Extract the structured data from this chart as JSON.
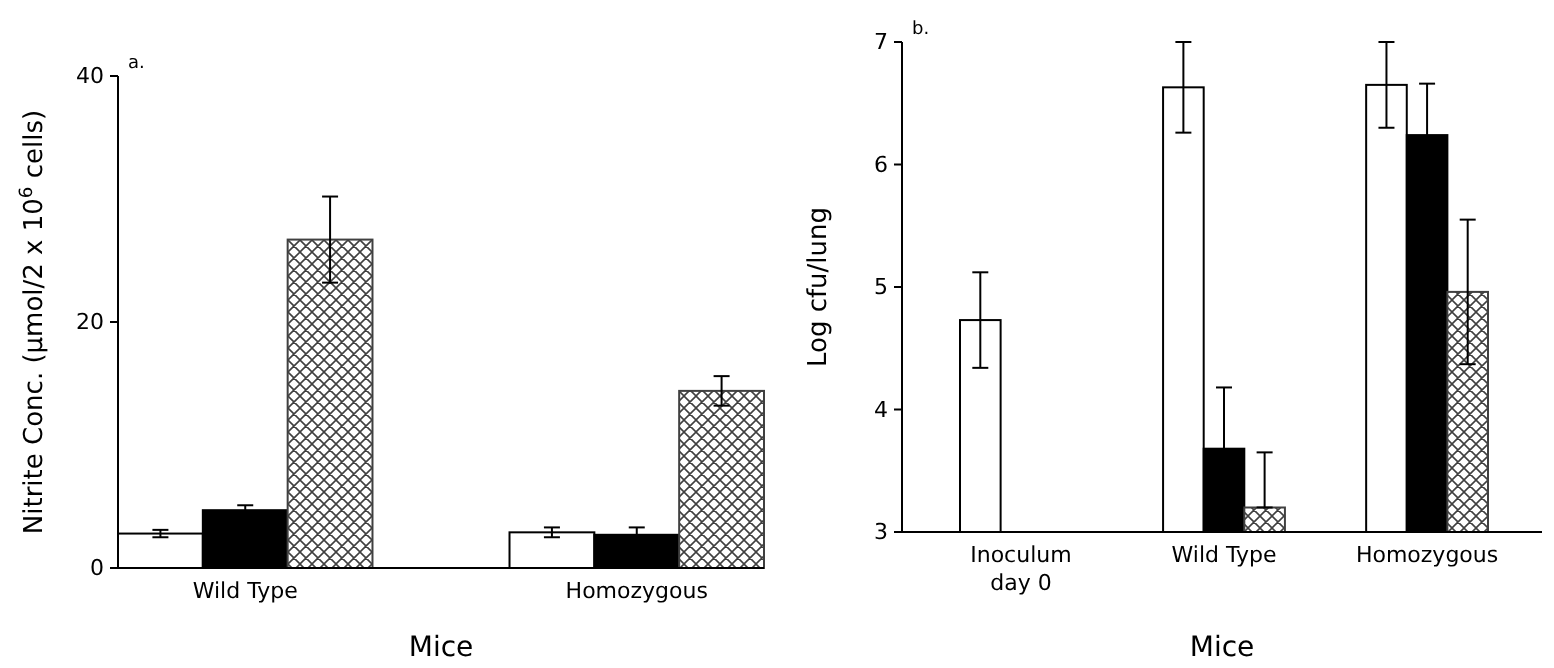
{
  "chart_data": [
    {
      "type": "bar",
      "categories": [
        "Wild Type",
        "Homozygous"
      ],
      "xlabel": "Mice",
      "ylabel": "Nitrite Conc. (μmol/2 x 10$^{6}$ cells)",
      "ylim": [
        0,
        40
      ],
      "yticks": [
        0,
        20,
        40
      ],
      "annotations": [
        "a."
      ],
      "series": [
        {
          "color": "#ffffff",
          "values": [
            2.8,
            2.9
          ],
          "errors": [
            0.3,
            0.4
          ]
        },
        {
          "color": "#000000",
          "values": [
            4.7,
            2.7
          ],
          "errors": [
            0.4,
            0.6
          ]
        },
        {
          "color": "#404040",
          "values": [
            26.7,
            14.4
          ],
          "errors": [
            3.5,
            1.2
          ]
        }
      ]
    },
    {
      "type": "bar",
      "categories": [
        "Inoculum day 0",
        "Wild Type",
        "Homozygous"
      ],
      "xlabel": "Mice",
      "ylabel": "Log cfu/lung",
      "ylim": [
        3,
        7
      ],
      "yticks": [
        3,
        4,
        5,
        6,
        7
      ],
      "annotations": [
        "b."
      ],
      "series": [
        {
          "color": "#ffffff",
          "values": [
            4.73,
            6.63,
            6.65
          ],
          "errors": [
            0.39,
            0.37,
            0.35
          ]
        },
        {
          "color": "#000000",
          "values": [
            null,
            3.68,
            6.24
          ],
          "errors": [
            null,
            0.5,
            0.42
          ]
        },
        {
          "color": "#404040",
          "values": [
            null,
            3.2,
            4.96
          ],
          "errors": [
            null,
            [
              3.2,
              3.65
            ],
            0.59
          ]
        }
      ]
    }
  ]
}
